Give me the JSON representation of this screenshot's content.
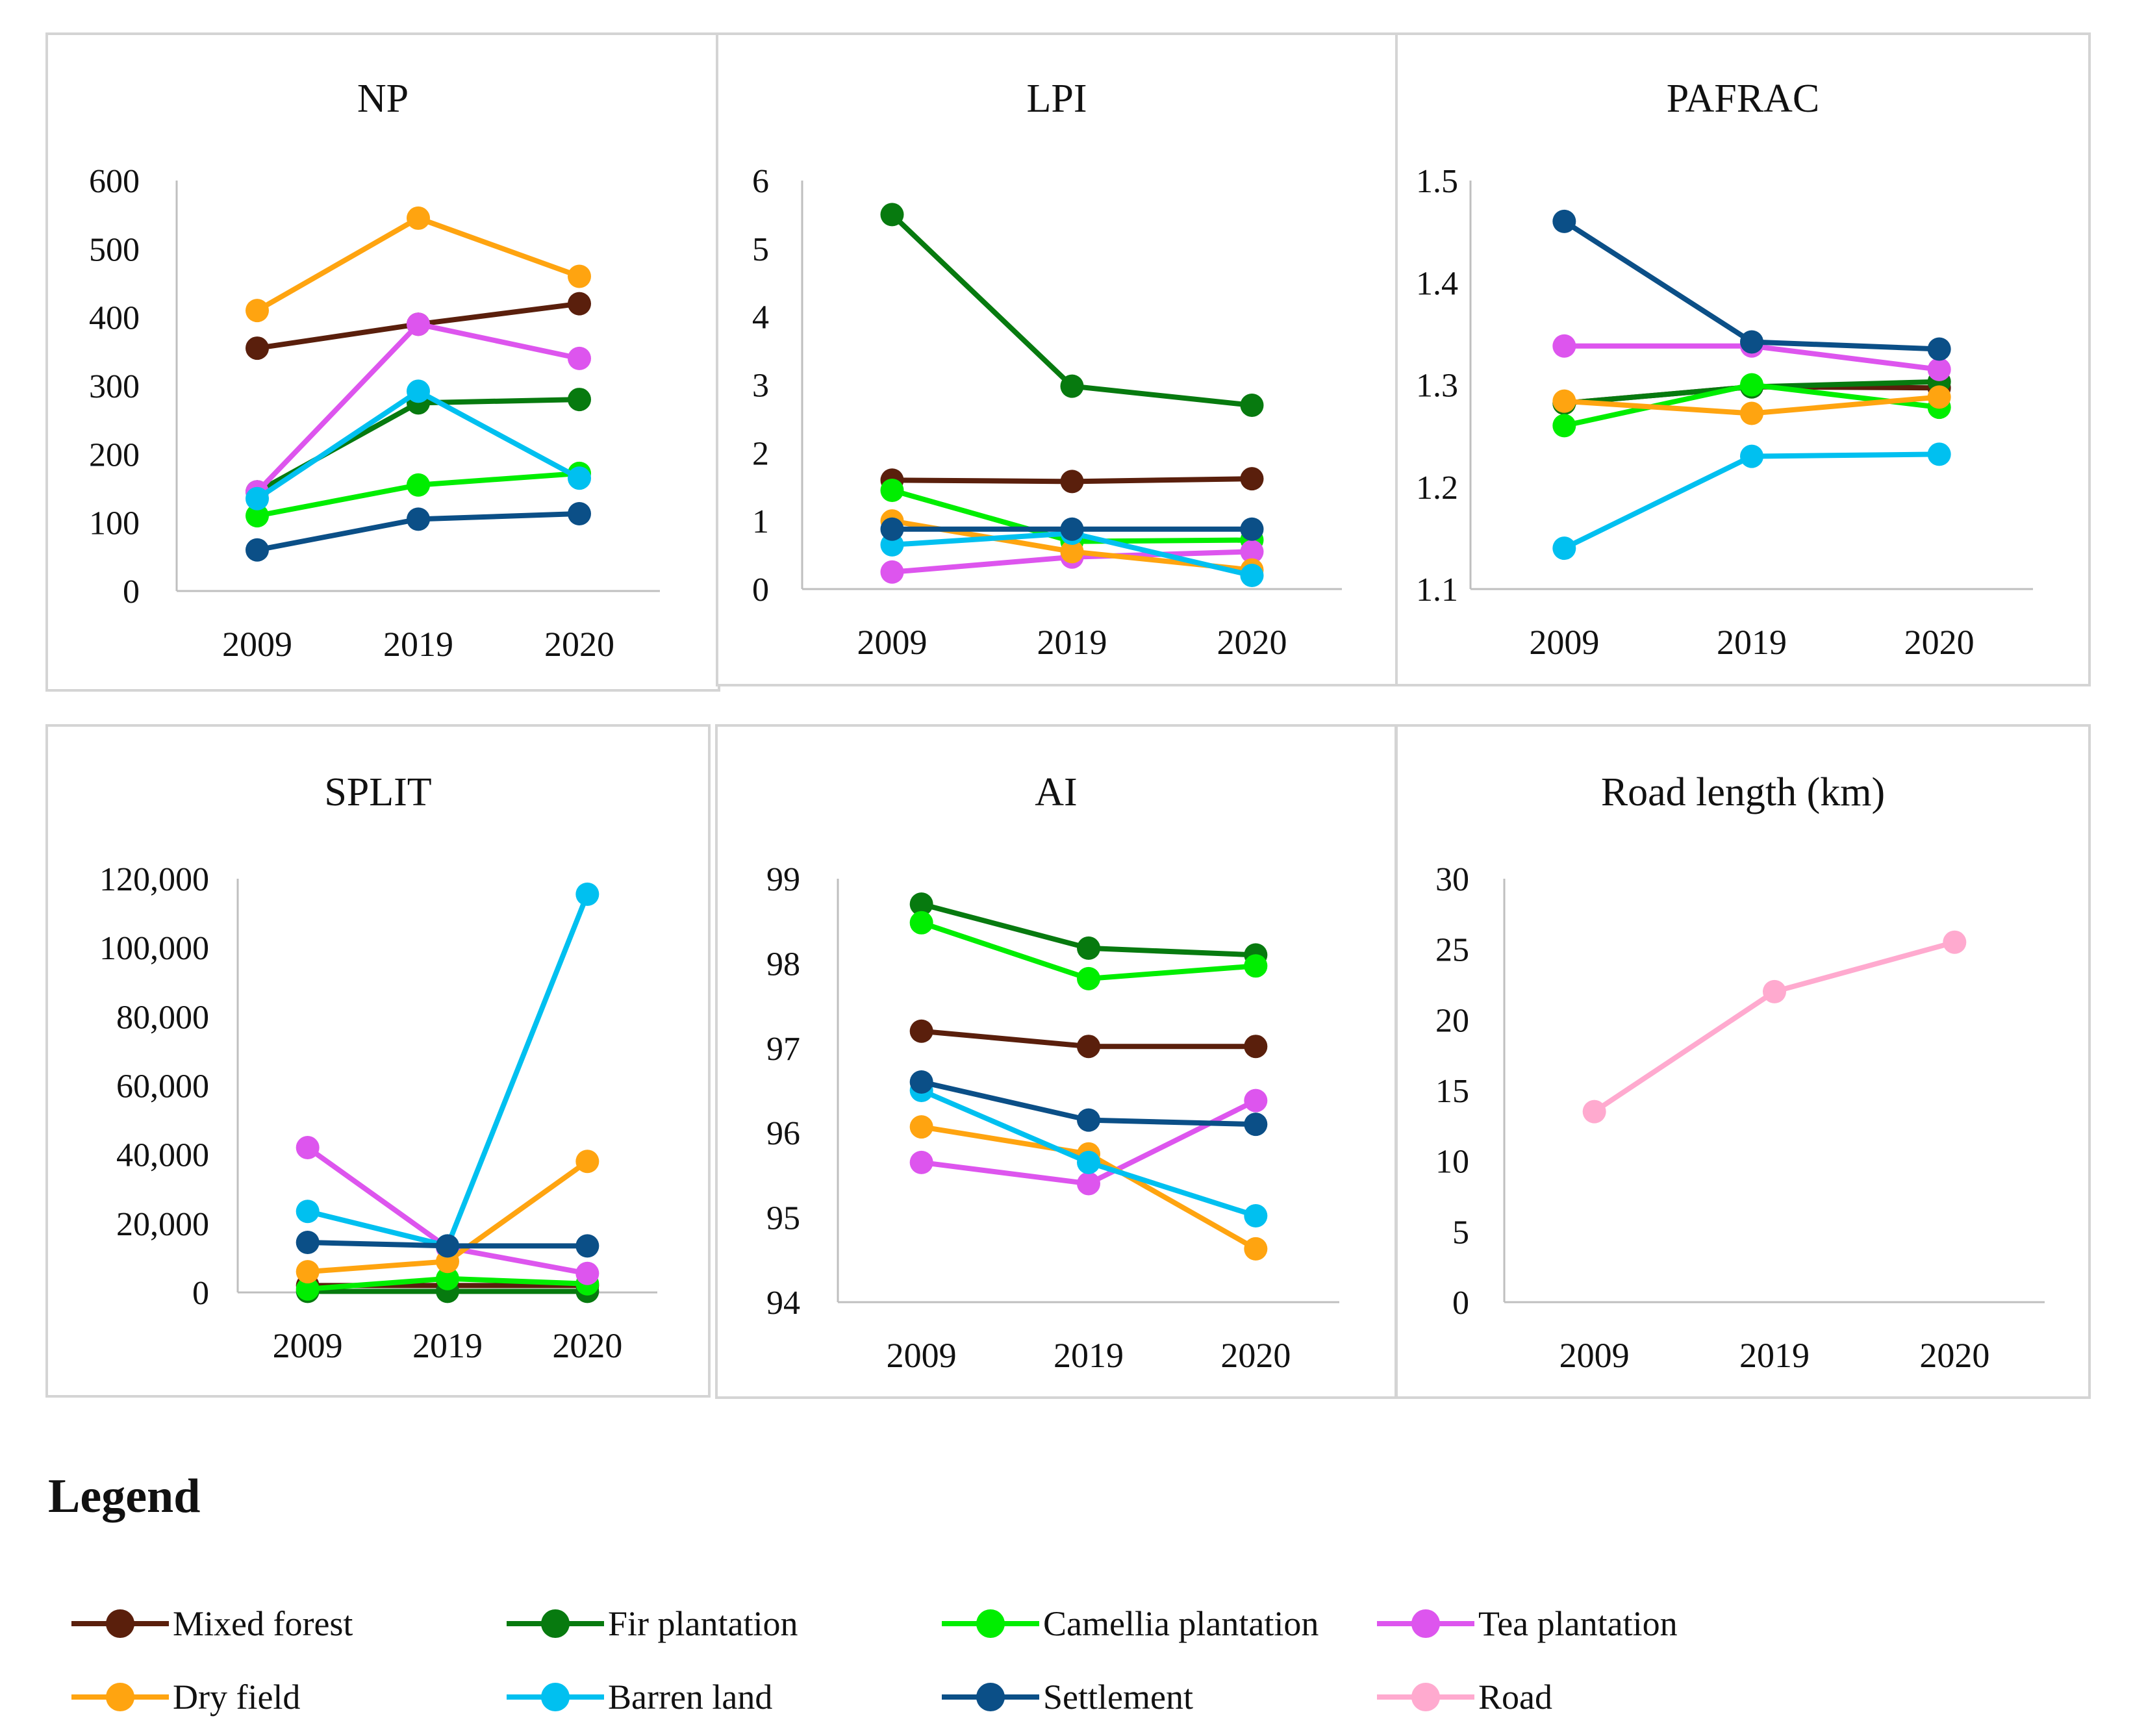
{
  "series_styles": [
    {
      "name": "Mixed forest",
      "color": "#5A1F0C"
    },
    {
      "name": "Fir plantation",
      "color": "#077A0F"
    },
    {
      "name": "Camellia plantation",
      "color": "#00EE00"
    },
    {
      "name": "Tea plantation",
      "color": "#DD55EE"
    },
    {
      "name": "Dry field",
      "color": "#FFA410"
    },
    {
      "name": "Barren land",
      "color": "#00C0F0"
    },
    {
      "name": "Settlement",
      "color": "#0B4F87"
    },
    {
      "name": "Road",
      "color": "#FFAACF"
    }
  ],
  "legend": {
    "title": "Legend",
    "items": [
      "Mixed forest",
      "Fir plantation",
      "Camellia plantation",
      "Tea plantation",
      "Dry field",
      "Barren land",
      "Settlement",
      "Road"
    ]
  },
  "chart_data": [
    {
      "type": "line",
      "title": "NP",
      "categories": [
        "2009",
        "2019",
        "2020"
      ],
      "ylim": [
        0,
        600
      ],
      "yticks": [
        0,
        100,
        200,
        300,
        400,
        500,
        600
      ],
      "ytick_labels": [
        "0",
        "100",
        "200",
        "300",
        "400",
        "500",
        "600"
      ],
      "series": [
        {
          "name": "Mixed forest",
          "values": [
            355,
            390,
            420
          ]
        },
        {
          "name": "Fir plantation",
          "values": [
            145,
            275,
            280
          ]
        },
        {
          "name": "Camellia plantation",
          "values": [
            110,
            155,
            172
          ]
        },
        {
          "name": "Tea plantation",
          "values": [
            145,
            390,
            340
          ]
        },
        {
          "name": "Dry field",
          "values": [
            410,
            545,
            460
          ]
        },
        {
          "name": "Barren land",
          "values": [
            135,
            292,
            165
          ]
        },
        {
          "name": "Settlement",
          "values": [
            60,
            105,
            113
          ]
        }
      ]
    },
    {
      "type": "line",
      "title": "LPI",
      "categories": [
        "2009",
        "2019",
        "2020"
      ],
      "ylim": [
        0,
        6
      ],
      "yticks": [
        0,
        1,
        2,
        3,
        4,
        5,
        6
      ],
      "ytick_labels": [
        "0",
        "1",
        "2",
        "3",
        "4",
        "5",
        "6"
      ],
      "series": [
        {
          "name": "Mixed forest",
          "values": [
            1.6,
            1.58,
            1.62
          ]
        },
        {
          "name": "Fir plantation",
          "values": [
            5.5,
            2.98,
            2.7
          ]
        },
        {
          "name": "Camellia plantation",
          "values": [
            1.45,
            0.7,
            0.72
          ]
        },
        {
          "name": "Tea plantation",
          "values": [
            0.25,
            0.47,
            0.55
          ]
        },
        {
          "name": "Dry field",
          "values": [
            1.0,
            0.55,
            0.28
          ]
        },
        {
          "name": "Barren land",
          "values": [
            0.65,
            0.82,
            0.2
          ]
        },
        {
          "name": "Settlement",
          "values": [
            0.88,
            0.88,
            0.88
          ]
        }
      ]
    },
    {
      "type": "line",
      "title": "PAFRAC",
      "categories": [
        "2009",
        "2019",
        "2020"
      ],
      "ylim": [
        1.1,
        1.5
      ],
      "yticks": [
        1.1,
        1.2,
        1.3,
        1.4,
        1.5
      ],
      "ytick_labels": [
        "1.1",
        "1.2",
        "1.3",
        "1.4",
        "1.5"
      ],
      "series": [
        {
          "name": "Mixed forest",
          "values": [
            1.282,
            1.298,
            1.297
          ]
        },
        {
          "name": "Fir plantation",
          "values": [
            1.282,
            1.298,
            1.303
          ]
        },
        {
          "name": "Camellia plantation",
          "values": [
            1.26,
            1.3,
            1.278
          ]
        },
        {
          "name": "Tea plantation",
          "values": [
            1.338,
            1.338,
            1.315
          ]
        },
        {
          "name": "Dry field",
          "values": [
            1.284,
            1.272,
            1.288
          ]
        },
        {
          "name": "Barren land",
          "values": [
            1.14,
            1.23,
            1.232
          ]
        },
        {
          "name": "Settlement",
          "values": [
            1.46,
            1.342,
            1.335
          ]
        }
      ]
    },
    {
      "type": "line",
      "title": "SPLIT",
      "categories": [
        "2009",
        "2019",
        "2020"
      ],
      "ylim": [
        0,
        120000
      ],
      "yticks": [
        0,
        20000,
        40000,
        60000,
        80000,
        100000,
        120000
      ],
      "ytick_labels": [
        "0",
        "20,000",
        "40,000",
        "60,000",
        "80,000",
        "100,000",
        "120,000"
      ],
      "series": [
        {
          "name": "Mixed forest",
          "values": [
            2000,
            2000,
            2000
          ]
        },
        {
          "name": "Fir plantation",
          "values": [
            300,
            300,
            300
          ]
        },
        {
          "name": "Camellia plantation",
          "values": [
            1000,
            4000,
            2500
          ]
        },
        {
          "name": "Tea plantation",
          "values": [
            42000,
            13000,
            5500
          ]
        },
        {
          "name": "Dry field",
          "values": [
            6000,
            9000,
            38000
          ]
        },
        {
          "name": "Barren land",
          "values": [
            23500,
            13500,
            115500
          ]
        },
        {
          "name": "Settlement",
          "values": [
            14500,
            13500,
            13500
          ]
        }
      ]
    },
    {
      "type": "line",
      "title": "AI",
      "categories": [
        "2009",
        "2019",
        "2020"
      ],
      "ylim": [
        94,
        99
      ],
      "yticks": [
        94,
        95,
        96,
        97,
        98,
        99
      ],
      "ytick_labels": [
        "94",
        "95",
        "96",
        "97",
        "98",
        "99"
      ],
      "series": [
        {
          "name": "Mixed forest",
          "values": [
            97.2,
            97.02,
            97.02
          ]
        },
        {
          "name": "Fir plantation",
          "values": [
            98.7,
            98.18,
            98.1
          ]
        },
        {
          "name": "Camellia plantation",
          "values": [
            98.48,
            97.82,
            97.97
          ]
        },
        {
          "name": "Tea plantation",
          "values": [
            95.65,
            95.4,
            96.38
          ]
        },
        {
          "name": "Dry field",
          "values": [
            96.07,
            95.75,
            94.63
          ]
        },
        {
          "name": "Barren land",
          "values": [
            96.5,
            95.65,
            95.02
          ]
        },
        {
          "name": "Settlement",
          "values": [
            96.6,
            96.15,
            96.1
          ]
        }
      ]
    },
    {
      "type": "line",
      "title": "Road length (km)",
      "categories": [
        "2009",
        "2019",
        "2020"
      ],
      "ylim": [
        0,
        30
      ],
      "yticks": [
        0,
        5,
        10,
        15,
        20,
        25,
        30
      ],
      "ytick_labels": [
        "0",
        "5",
        "10",
        "15",
        "20",
        "25",
        "30"
      ],
      "series": [
        {
          "name": "Road",
          "values": [
            13.5,
            22,
            25.5
          ]
        }
      ]
    }
  ]
}
